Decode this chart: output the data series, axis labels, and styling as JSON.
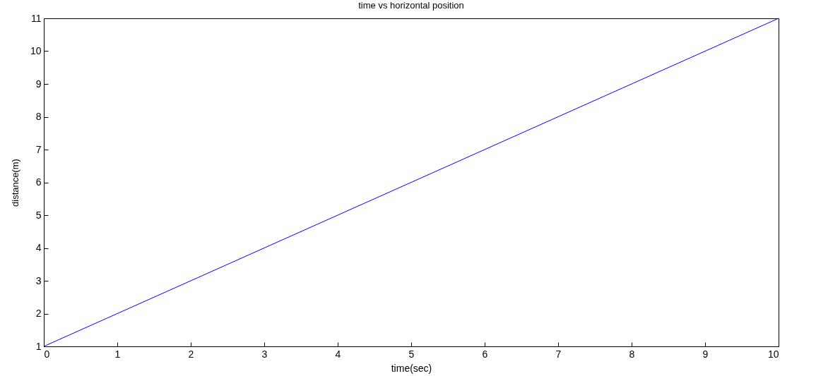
{
  "chart_data": {
    "type": "line",
    "title": "time vs horizontal position",
    "xlabel": "time(sec)",
    "ylabel": "distance(m)",
    "x": [
      0,
      10
    ],
    "series": [
      {
        "color": "#0000ff",
        "values": [
          1,
          11
        ]
      }
    ],
    "xlim": [
      0,
      10
    ],
    "ylim": [
      1,
      11
    ],
    "xticks": [
      0,
      1,
      2,
      3,
      4,
      5,
      6,
      7,
      8,
      9,
      10
    ],
    "yticks": [
      1,
      2,
      3,
      4,
      5,
      6,
      7,
      8,
      9,
      10,
      11
    ],
    "grid": false,
    "marker": "none",
    "line_style": "solid"
  }
}
